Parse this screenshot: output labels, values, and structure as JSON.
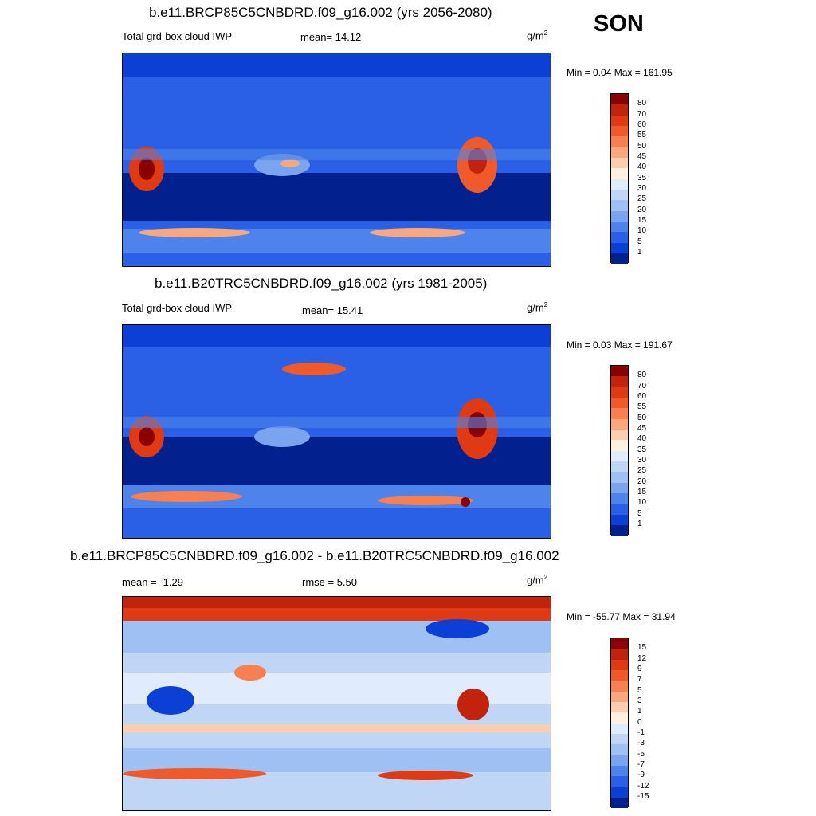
{
  "season": "SON",
  "panels": [
    {
      "title": "b.e11.BRCP85C5CNBDRD.f09_g16.002 (yrs 2056-2080)",
      "left_label": "Total grd-box cloud IWP",
      "center_label": "mean=  14.12",
      "unit": "g/m",
      "unit_exp": "2",
      "minmax": "Min =   0.04 Max = 161.95",
      "colorbar_ticks": [
        "80",
        "70",
        "60",
        "55",
        "50",
        "45",
        "40",
        "35",
        "30",
        "25",
        "20",
        "15",
        "10",
        "5",
        "1"
      ],
      "colorbar_colors": [
        "#8b0000",
        "#c1230d",
        "#e03a14",
        "#f05a2a",
        "#f77f50",
        "#fba77e",
        "#fdcdb0",
        "#fff0e0",
        "#e0ecfb",
        "#c0d6f6",
        "#9fc0f2",
        "#7aa5ee",
        "#4d83ea",
        "#2a60e6",
        "#0c3fd6",
        "#03208f"
      ]
    },
    {
      "title": "b.e11.B20TRC5CNBDRD.f09_g16.002 (yrs 1981-2005)",
      "left_label": "Total grd-box cloud IWP",
      "center_label": "mean=  15.41",
      "unit": "g/m",
      "unit_exp": "2",
      "minmax": "Min =   0.03 Max = 191.67",
      "colorbar_ticks": [
        "80",
        "70",
        "60",
        "55",
        "50",
        "45",
        "40",
        "35",
        "30",
        "25",
        "20",
        "15",
        "10",
        "5",
        "1"
      ],
      "colorbar_colors": [
        "#8b0000",
        "#c1230d",
        "#e03a14",
        "#f05a2a",
        "#f77f50",
        "#fba77e",
        "#fdcdb0",
        "#fff0e0",
        "#e0ecfb",
        "#c0d6f6",
        "#9fc0f2",
        "#7aa5ee",
        "#4d83ea",
        "#2a60e6",
        "#0c3fd6",
        "#03208f"
      ]
    },
    {
      "title": "b.e11.BRCP85C5CNBDRD.f09_g16.002 - b.e11.B20TRC5CNBDRD.f09_g16.002",
      "left_label": "mean =  -1.29",
      "center_label": "rmse =   5.50",
      "unit": "g/m",
      "unit_exp": "2",
      "minmax": "Min = -55.77 Max =  31.94",
      "colorbar_ticks": [
        "15",
        "12",
        "9",
        "7",
        "5",
        "3",
        "1",
        "0",
        "-1",
        "-3",
        "-5",
        "-7",
        "-9",
        "-12",
        "-15"
      ],
      "colorbar_colors": [
        "#8b0000",
        "#c1230d",
        "#e03a14",
        "#f05a2a",
        "#f77f50",
        "#fba77e",
        "#fdcdb0",
        "#fff0e0",
        "#e0ecfb",
        "#c0d6f6",
        "#9fc0f2",
        "#7aa5ee",
        "#4d83ea",
        "#2a60e6",
        "#0c3fd6",
        "#03208f"
      ]
    }
  ]
}
